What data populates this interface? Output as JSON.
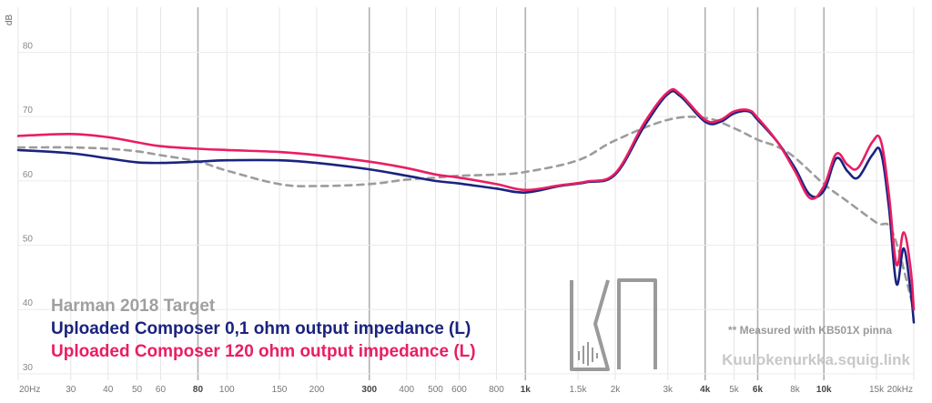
{
  "chart_data": {
    "type": "line",
    "xscale": "log",
    "xlim": [
      20,
      20000
    ],
    "ylim": [
      29,
      87
    ],
    "ylabel": "dB",
    "grid": true,
    "legend_position": "bottom-left",
    "y_ticks": [
      30,
      40,
      50,
      60,
      70,
      80
    ],
    "x_ticks": [
      {
        "value": 20,
        "label": "20Hz",
        "major": false
      },
      {
        "value": 30,
        "label": "30",
        "major": false
      },
      {
        "value": 40,
        "label": "40",
        "major": false
      },
      {
        "value": 50,
        "label": "50",
        "major": false
      },
      {
        "value": 60,
        "label": "60",
        "major": false
      },
      {
        "value": 80,
        "label": "80",
        "major": true
      },
      {
        "value": 100,
        "label": "100",
        "major": false
      },
      {
        "value": 150,
        "label": "150",
        "major": false
      },
      {
        "value": 200,
        "label": "200",
        "major": false
      },
      {
        "value": 300,
        "label": "300",
        "major": true
      },
      {
        "value": 400,
        "label": "400",
        "major": false
      },
      {
        "value": 500,
        "label": "500",
        "major": false
      },
      {
        "value": 600,
        "label": "600",
        "major": false
      },
      {
        "value": 800,
        "label": "800",
        "major": false
      },
      {
        "value": 1000,
        "label": "1k",
        "major": true
      },
      {
        "value": 1500,
        "label": "1.5k",
        "major": false
      },
      {
        "value": 2000,
        "label": "2k",
        "major": false
      },
      {
        "value": 3000,
        "label": "3k",
        "major": false
      },
      {
        "value": 4000,
        "label": "4k",
        "major": true
      },
      {
        "value": 5000,
        "label": "5k",
        "major": false
      },
      {
        "value": 6000,
        "label": "6k",
        "major": true
      },
      {
        "value": 8000,
        "label": "8k",
        "major": false
      },
      {
        "value": 10000,
        "label": "10k",
        "major": true
      },
      {
        "value": 15000,
        "label": "15k",
        "major": false
      },
      {
        "value": 20000,
        "label": "20kHz",
        "major": false
      }
    ],
    "series": [
      {
        "name": "Harman 2018 Target",
        "color": "#9c9c9c",
        "dashed": true,
        "points": [
          [
            20,
            65.2
          ],
          [
            30,
            65.2
          ],
          [
            40,
            65.0
          ],
          [
            50,
            64.6
          ],
          [
            60,
            64.0
          ],
          [
            80,
            63.0
          ],
          [
            100,
            61.6
          ],
          [
            150,
            59.5
          ],
          [
            200,
            59.2
          ],
          [
            300,
            59.5
          ],
          [
            400,
            60.2
          ],
          [
            500,
            60.5
          ],
          [
            600,
            60.8
          ],
          [
            800,
            61.0
          ],
          [
            1000,
            61.4
          ],
          [
            1500,
            63.2
          ],
          [
            2000,
            66.3
          ],
          [
            3000,
            69.5
          ],
          [
            4000,
            69.8
          ],
          [
            5000,
            68.2
          ],
          [
            6000,
            66.4
          ],
          [
            7000,
            65.3
          ],
          [
            8000,
            63.6
          ],
          [
            10000,
            59.5
          ],
          [
            12000,
            56.8
          ],
          [
            15000,
            53.5
          ],
          [
            17000,
            52.0
          ],
          [
            20000,
            40.0
          ]
        ]
      },
      {
        "name": "Uploaded Composer 0,1 ohm output impedance (L)",
        "color": "#1a237e",
        "dashed": false,
        "points": [
          [
            20,
            64.8
          ],
          [
            30,
            64.3
          ],
          [
            40,
            63.5
          ],
          [
            50,
            62.9
          ],
          [
            60,
            62.8
          ],
          [
            80,
            63.0
          ],
          [
            100,
            63.2
          ],
          [
            150,
            63.2
          ],
          [
            200,
            62.8
          ],
          [
            300,
            61.8
          ],
          [
            400,
            60.8
          ],
          [
            500,
            60.0
          ],
          [
            600,
            59.6
          ],
          [
            800,
            58.8
          ],
          [
            1000,
            58.2
          ],
          [
            1300,
            59.2
          ],
          [
            1600,
            59.8
          ],
          [
            2000,
            61.0
          ],
          [
            2500,
            68.5
          ],
          [
            3000,
            73.5
          ],
          [
            3300,
            73.2
          ],
          [
            4000,
            69.2
          ],
          [
            4500,
            69.2
          ],
          [
            5000,
            70.5
          ],
          [
            5600,
            70.8
          ],
          [
            6000,
            69.5
          ],
          [
            7000,
            66.0
          ],
          [
            8000,
            62.0
          ],
          [
            9000,
            57.8
          ],
          [
            10000,
            58.5
          ],
          [
            11000,
            63.5
          ],
          [
            12000,
            61.5
          ],
          [
            13000,
            60.5
          ],
          [
            14500,
            64.0
          ],
          [
            15500,
            64.5
          ],
          [
            16500,
            56.0
          ],
          [
            17500,
            44.0
          ],
          [
            18500,
            49.5
          ],
          [
            19500,
            43.0
          ],
          [
            20000,
            38.0
          ]
        ]
      },
      {
        "name": "Uploaded Composer 120 ohm output impedance (L)",
        "color": "#e91e63",
        "dashed": false,
        "points": [
          [
            20,
            67.0
          ],
          [
            30,
            67.3
          ],
          [
            40,
            66.8
          ],
          [
            50,
            66.0
          ],
          [
            60,
            65.4
          ],
          [
            80,
            65.0
          ],
          [
            100,
            64.8
          ],
          [
            150,
            64.5
          ],
          [
            200,
            64.0
          ],
          [
            300,
            63.0
          ],
          [
            400,
            62.0
          ],
          [
            500,
            61.0
          ],
          [
            600,
            60.5
          ],
          [
            800,
            59.5
          ],
          [
            1000,
            58.6
          ],
          [
            1300,
            59.3
          ],
          [
            1600,
            59.9
          ],
          [
            2000,
            61.2
          ],
          [
            2500,
            69.0
          ],
          [
            3000,
            73.8
          ],
          [
            3300,
            73.5
          ],
          [
            4000,
            69.5
          ],
          [
            4500,
            69.5
          ],
          [
            5000,
            70.8
          ],
          [
            5600,
            71.0
          ],
          [
            6000,
            69.8
          ],
          [
            7000,
            66.0
          ],
          [
            8000,
            61.5
          ],
          [
            9000,
            57.3
          ],
          [
            10000,
            59.2
          ],
          [
            11000,
            64.2
          ],
          [
            12000,
            62.5
          ],
          [
            13000,
            62.0
          ],
          [
            14500,
            66.0
          ],
          [
            15500,
            66.3
          ],
          [
            16500,
            58.0
          ],
          [
            17500,
            47.0
          ],
          [
            18500,
            52.0
          ],
          [
            19500,
            46.5
          ],
          [
            20000,
            40.0
          ]
        ]
      }
    ],
    "legend_entries": [
      {
        "label": "Harman 2018 Target",
        "color": "#9c9c9c"
      },
      {
        "label": "Uploaded Composer 0,1 ohm output impedance (L)",
        "color": "#1a237e"
      },
      {
        "label": "Uploaded Composer 120 ohm output impedance (L)",
        "color": "#e91e63"
      }
    ],
    "annotations": {
      "note": "** Measured with KB501X pinna",
      "site": "Kuulokenurkka.squig.link"
    }
  }
}
